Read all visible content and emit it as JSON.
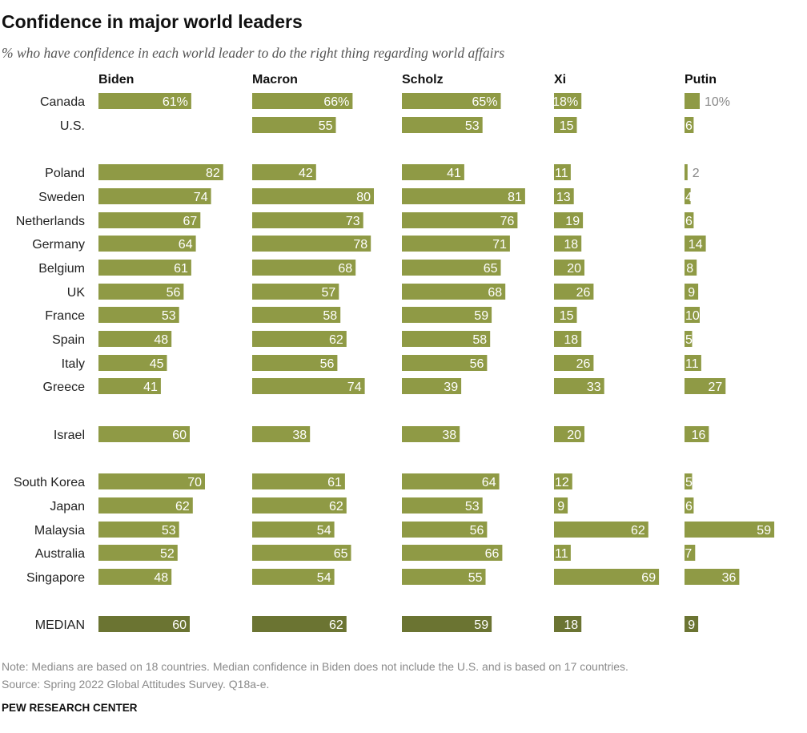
{
  "title": "Confidence in major world leaders",
  "subtitle": "% who have confidence in each world leader to do the right thing regarding world affairs",
  "note": "Note: Medians are based on 18 countries. Median confidence in Biden does not include the U.S. and is based on 17 countries.",
  "source": "Source: Spring 2022 Global Attitudes Survey. Q18a-e.",
  "brand": "PEW RESEARCH CENTER",
  "colors": {
    "bar": "#8f9a45",
    "median_bar": "#6b7432",
    "label_inside": "#ffffff",
    "label_outside": "#888888"
  },
  "chart_data": {
    "type": "bar",
    "orientation": "horizontal",
    "categories": [
      "Canada",
      "U.S.",
      "Poland",
      "Sweden",
      "Netherlands",
      "Germany",
      "Belgium",
      "UK",
      "France",
      "Spain",
      "Italy",
      "Greece",
      "Israel",
      "South Korea",
      "Japan",
      "Malaysia",
      "Australia",
      "Singapore",
      "MEDIAN"
    ],
    "series": [
      {
        "name": "Biden",
        "values": [
          61,
          null,
          82,
          74,
          67,
          64,
          61,
          56,
          53,
          48,
          45,
          41,
          60,
          70,
          62,
          53,
          52,
          48,
          60
        ],
        "labels": [
          "61%",
          "",
          "82",
          "74",
          "67",
          "64",
          "61",
          "56",
          "53",
          "48",
          "45",
          "41",
          "60",
          "70",
          "62",
          "53",
          "52",
          "48",
          "60"
        ]
      },
      {
        "name": "Macron",
        "values": [
          66,
          55,
          42,
          80,
          73,
          78,
          68,
          57,
          58,
          62,
          56,
          74,
          38,
          61,
          62,
          54,
          65,
          54,
          62
        ],
        "labels": [
          "66%",
          "55",
          "42",
          "80",
          "73",
          "78",
          "68",
          "57",
          "58",
          "62",
          "56",
          "74",
          "38",
          "61",
          "62",
          "54",
          "65",
          "54",
          "62"
        ]
      },
      {
        "name": "Scholz",
        "values": [
          65,
          53,
          41,
          81,
          76,
          71,
          65,
          68,
          59,
          58,
          56,
          39,
          38,
          64,
          53,
          56,
          66,
          55,
          59
        ],
        "labels": [
          "65%",
          "53",
          "41",
          "81",
          "76",
          "71",
          "65",
          "68",
          "59",
          "58",
          "56",
          "39",
          "38",
          "64",
          "53",
          "56",
          "66",
          "55",
          "59"
        ]
      },
      {
        "name": "Xi",
        "values": [
          18,
          15,
          11,
          13,
          19,
          18,
          20,
          26,
          15,
          18,
          26,
          33,
          20,
          12,
          9,
          62,
          11,
          69,
          18
        ],
        "labels": [
          "18%",
          "15",
          "11",
          "13",
          "19",
          "18",
          "20",
          "26",
          "15",
          "18",
          "26",
          "33",
          "20",
          "12",
          "9",
          "62",
          "11",
          "69",
          "18"
        ]
      },
      {
        "name": "Putin",
        "values": [
          10,
          6,
          2,
          4,
          6,
          14,
          8,
          9,
          10,
          5,
          11,
          27,
          16,
          5,
          6,
          59,
          7,
          36,
          9
        ],
        "labels": [
          "10%",
          "6",
          "2",
          "4",
          "6",
          "14",
          "8",
          "9",
          "10",
          "5",
          "11",
          "27",
          "16",
          "5",
          "6",
          "59",
          "7",
          "36",
          "9"
        ]
      }
    ],
    "xlim": [
      0,
      100
    ],
    "grid": false,
    "legend": "none"
  }
}
